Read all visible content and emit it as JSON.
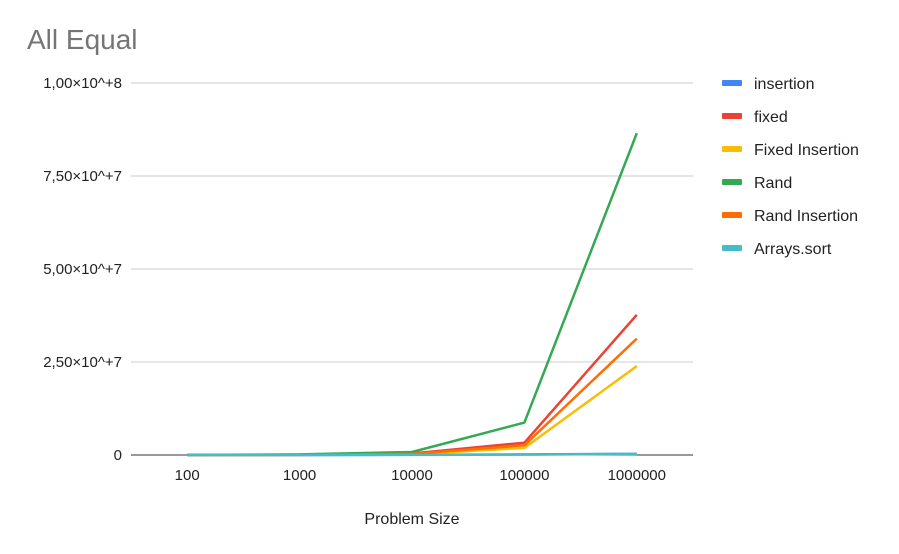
{
  "chart_data": {
    "type": "line",
    "title": "All Equal",
    "xlabel": "Problem Size",
    "ylabel": "",
    "categories": [
      "100",
      "1000",
      "10000",
      "100000",
      "1000000"
    ],
    "ylim": [
      0,
      100000000
    ],
    "yticks": [
      {
        "value": 0,
        "label": "0"
      },
      {
        "value": 25000000,
        "label": "2,50×10^+7"
      },
      {
        "value": 50000000,
        "label": "5,00×10^+7"
      },
      {
        "value": 75000000,
        "label": "7,50×10^+7"
      },
      {
        "value": 100000000,
        "label": "1,00×10^+8"
      }
    ],
    "grid": true,
    "legend_position": "right",
    "series": [
      {
        "name": "insertion",
        "color": "#4285F4",
        "values": [
          0,
          10000,
          50000,
          150000,
          300000
        ]
      },
      {
        "name": "fixed",
        "color": "#EA4335",
        "values": [
          10000,
          50000,
          400000,
          3300000,
          37700000
        ]
      },
      {
        "name": "Fixed Insertion",
        "color": "#FBBC04",
        "values": [
          5000,
          30000,
          200000,
          1900000,
          23900000
        ]
      },
      {
        "name": "Rand",
        "color": "#34A853",
        "values": [
          20000,
          150000,
          800000,
          8700000,
          86500000
        ]
      },
      {
        "name": "Rand Insertion",
        "color": "#FF6D01",
        "values": [
          8000,
          40000,
          300000,
          2600000,
          31300000
        ]
      },
      {
        "name": "Arrays.sort",
        "color": "#46BDC6",
        "values": [
          0,
          5000,
          20000,
          100000,
          300000
        ]
      }
    ]
  }
}
